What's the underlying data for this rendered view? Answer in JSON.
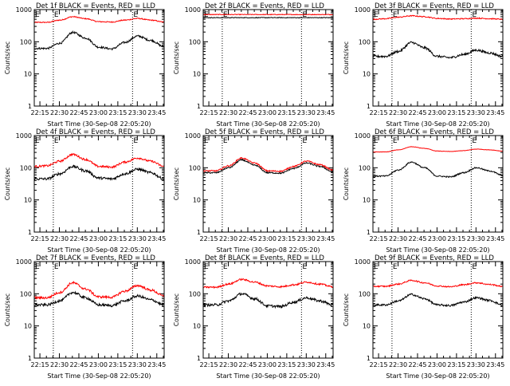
{
  "chart_data": [
    {
      "type": "line",
      "title": "Det 1f BLACK = Events, RED = LLD",
      "xlabel": "Start Time (30-Sep-08 22:05:20)",
      "ylabel": "Counts/sec",
      "xticks": [
        "22:15",
        "22:30",
        "22:45",
        "23:00",
        "23:15",
        "23:30",
        "23:45"
      ],
      "xlim_minutes": [
        5.33,
        105.33
      ],
      "yscale": "log",
      "ylim": [
        1,
        1000
      ],
      "yticks": [
        "1",
        "10",
        "100",
        "1000"
      ],
      "marker_lines_min": [
        20,
        81
      ],
      "marker_labels": [
        "E",
        "E"
      ],
      "series": [
        {
          "name": "Events",
          "color": "#000000",
          "baseline": 62,
          "amp": 3.1,
          "noise": 0.03,
          "points_x": [
            5.33,
            15,
            25,
            35,
            45,
            55,
            65,
            75,
            85,
            95,
            105.33
          ],
          "points_y": [
            62,
            62,
            90,
            195,
            130,
            68,
            60,
            95,
            150,
            110,
            70
          ]
        },
        {
          "name": "LLD",
          "color": "#ff0000",
          "baseline": 400,
          "amp": 1.5,
          "noise": 0.015,
          "points_x": [
            5.33,
            15,
            25,
            35,
            45,
            55,
            65,
            75,
            85,
            95,
            105.33
          ],
          "points_y": [
            400,
            400,
            470,
            600,
            520,
            420,
            410,
            470,
            530,
            470,
            410
          ]
        }
      ]
    },
    {
      "type": "line",
      "title": "Det 2f BLACK = Events, RED = LLD",
      "xlabel": "Start Time (30-Sep-08 22:05:20)",
      "ylabel": "Counts/sec",
      "xticks": [
        "22:15",
        "22:30",
        "22:45",
        "23:00",
        "23:15",
        "23:30",
        "23:45"
      ],
      "xlim_minutes": [
        5.33,
        105.33
      ],
      "yscale": "log",
      "ylim": [
        1,
        1000
      ],
      "yticks": [
        "1",
        "10",
        "100",
        "1000"
      ],
      "marker_lines_min": [
        20,
        81
      ],
      "marker_labels": [
        "E",
        "E"
      ],
      "series": [
        {
          "name": "Events",
          "color": "#000000",
          "noise": 0.01,
          "points_x": [
            5.33,
            25,
            45,
            65,
            85,
            105.33
          ],
          "points_y": [
            560,
            560,
            560,
            560,
            560,
            560
          ]
        },
        {
          "name": "LLD",
          "color": "#ff0000",
          "noise": 0.01,
          "points_x": [
            5.33,
            25,
            45,
            65,
            85,
            105.33
          ],
          "points_y": [
            700,
            700,
            700,
            700,
            700,
            700
          ]
        }
      ]
    },
    {
      "type": "line",
      "title": "Det 3f BLACK = Events, RED = LLD",
      "xlabel": "Start Time (30-Sep-08 22:05:20)",
      "ylabel": "Counts/sec",
      "xticks": [
        "22:15",
        "22:30",
        "22:45",
        "23:00",
        "23:15",
        "23:30",
        "23:45"
      ],
      "xlim_minutes": [
        5.33,
        105.33
      ],
      "yscale": "log",
      "ylim": [
        1,
        1000
      ],
      "yticks": [
        "1",
        "10",
        "100",
        "1000"
      ],
      "marker_lines_min": [
        20,
        81
      ],
      "marker_labels": [
        "E",
        "E"
      ],
      "series": [
        {
          "name": "Events",
          "color": "#000000",
          "noise": 0.035,
          "points_x": [
            5.33,
            15,
            25,
            35,
            45,
            55,
            65,
            75,
            85,
            95,
            105.33
          ],
          "points_y": [
            35,
            35,
            50,
            95,
            65,
            35,
            32,
            40,
            55,
            45,
            35
          ]
        },
        {
          "name": "LLD",
          "color": "#ff0000",
          "noise": 0.015,
          "points_x": [
            5.33,
            15,
            25,
            35,
            45,
            55,
            65,
            75,
            85,
            95,
            105.33
          ],
          "points_y": [
            500,
            520,
            580,
            640,
            600,
            530,
            510,
            520,
            540,
            520,
            500
          ]
        }
      ]
    },
    {
      "type": "line",
      "title": "Det 4f BLACK = Events, RED = LLD",
      "xlabel": "Start Time (30-Sep-08 22:05:20)",
      "ylabel": "Counts/sec",
      "xticks": [
        "22:15",
        "22:30",
        "22:45",
        "23:00",
        "23:15",
        "23:30",
        "23:45"
      ],
      "xlim_minutes": [
        5.33,
        105.33
      ],
      "yscale": "log",
      "ylim": [
        1,
        1000
      ],
      "yticks": [
        "1",
        "10",
        "100",
        "1000"
      ],
      "marker_lines_min": [
        20,
        81
      ],
      "marker_labels": [
        "E",
        "E"
      ],
      "series": [
        {
          "name": "Events",
          "color": "#000000",
          "noise": 0.04,
          "points_x": [
            5.33,
            15,
            25,
            35,
            45,
            55,
            65,
            75,
            85,
            95,
            105.33
          ],
          "points_y": [
            45,
            45,
            65,
            110,
            80,
            48,
            45,
            65,
            90,
            70,
            45
          ]
        },
        {
          "name": "LLD",
          "color": "#ff0000",
          "noise": 0.03,
          "points_x": [
            5.33,
            15,
            25,
            35,
            45,
            55,
            65,
            75,
            85,
            95,
            105.33
          ],
          "points_y": [
            110,
            115,
            160,
            260,
            180,
            110,
            105,
            150,
            200,
            160,
            110
          ]
        }
      ]
    },
    {
      "type": "line",
      "title": "Det 5f BLACK = Events, RED = LLD",
      "xlabel": "Start Time (30-Sep-08 22:05:20)",
      "ylabel": "Counts/sec",
      "xticks": [
        "22:15",
        "22:30",
        "22:45",
        "23:00",
        "23:15",
        "23:30",
        "23:45"
      ],
      "xlim_minutes": [
        5.33,
        105.33
      ],
      "yscale": "log",
      "ylim": [
        1,
        1000
      ],
      "yticks": [
        "1",
        "10",
        "100",
        "1000"
      ],
      "marker_lines_min": [
        20,
        81
      ],
      "marker_labels": [
        "E",
        "E"
      ],
      "series": [
        {
          "name": "Events",
          "color": "#000000",
          "noise": 0.02,
          "points_x": [
            5.33,
            15,
            25,
            35,
            45,
            55,
            65,
            75,
            85,
            95,
            105.33
          ],
          "points_y": [
            70,
            70,
            100,
            175,
            120,
            70,
            68,
            95,
            140,
            110,
            75
          ]
        },
        {
          "name": "LLD",
          "color": "#ff0000",
          "noise": 0.02,
          "points_x": [
            5.33,
            15,
            25,
            35,
            45,
            55,
            65,
            75,
            85,
            95,
            105.33
          ],
          "points_y": [
            80,
            80,
            115,
            200,
            140,
            80,
            78,
            110,
            160,
            125,
            85
          ]
        }
      ]
    },
    {
      "type": "line",
      "title": "Det 6f BLACK = Events, RED = LLD",
      "xlabel": "Start Time (30-Sep-08 22:05:20)",
      "ylabel": "Counts/sec",
      "xticks": [
        "22:15",
        "22:30",
        "22:45",
        "23:00",
        "23:15",
        "23:30",
        "23:45"
      ],
      "xlim_minutes": [
        5.33,
        105.33
      ],
      "yscale": "log",
      "ylim": [
        1,
        1000
      ],
      "yticks": [
        "1",
        "10",
        "100",
        "1000"
      ],
      "marker_lines_min": [
        20,
        81
      ],
      "marker_labels": [
        "E",
        "E"
      ],
      "series": [
        {
          "name": "Events",
          "color": "#000000",
          "noise": 0.02,
          "points_x": [
            5.33,
            15,
            25,
            35,
            45,
            55,
            65,
            75,
            85,
            95,
            105.33
          ],
          "points_y": [
            55,
            55,
            85,
            150,
            100,
            55,
            52,
            70,
            100,
            80,
            58
          ]
        },
        {
          "name": "LLD",
          "color": "#ff0000",
          "noise": 0.005,
          "points_x": [
            5.33,
            15,
            25,
            35,
            45,
            55,
            65,
            75,
            85,
            95,
            105.33
          ],
          "points_y": [
            310,
            310,
            360,
            450,
            400,
            330,
            320,
            340,
            380,
            360,
            330
          ]
        }
      ]
    },
    {
      "type": "line",
      "title": "Det 7f BLACK = Events, RED = LLD",
      "xlabel": "Start Time (30-Sep-08 22:05:20)",
      "ylabel": "Counts/sec",
      "xticks": [
        "22:15",
        "22:30",
        "22:45",
        "23:00",
        "23:15",
        "23:30",
        "23:45"
      ],
      "xlim_minutes": [
        5.33,
        105.33
      ],
      "yscale": "log",
      "ylim": [
        1,
        1000
      ],
      "yticks": [
        "1",
        "10",
        "100",
        "1000"
      ],
      "marker_lines_min": [
        20,
        81
      ],
      "marker_labels": [
        "E",
        "E"
      ],
      "series": [
        {
          "name": "Events",
          "color": "#000000",
          "noise": 0.04,
          "points_x": [
            5.33,
            15,
            25,
            35,
            45,
            55,
            65,
            75,
            85,
            95,
            105.33
          ],
          "points_y": [
            45,
            45,
            60,
            110,
            75,
            45,
            43,
            60,
            85,
            65,
            45
          ]
        },
        {
          "name": "LLD",
          "color": "#ff0000",
          "noise": 0.035,
          "points_x": [
            5.33,
            15,
            25,
            35,
            45,
            55,
            65,
            75,
            85,
            95,
            105.33
          ],
          "points_y": [
            75,
            75,
            110,
            220,
            140,
            80,
            78,
            120,
            180,
            130,
            85
          ]
        }
      ]
    },
    {
      "type": "line",
      "title": "Det 8f BLACK = Events, RED = LLD",
      "xlabel": "Start Time (30-Sep-08 22:05:20)",
      "ylabel": "Counts/sec",
      "xticks": [
        "22:15",
        "22:30",
        "22:45",
        "23:00",
        "23:15",
        "23:30",
        "23:45"
      ],
      "xlim_minutes": [
        5.33,
        105.33
      ],
      "yscale": "log",
      "ylim": [
        1,
        1000
      ],
      "yticks": [
        "1",
        "10",
        "100",
        "1000"
      ],
      "marker_lines_min": [
        20,
        81
      ],
      "marker_labels": [
        "E",
        "E"
      ],
      "series": [
        {
          "name": "Events",
          "color": "#000000",
          "noise": 0.04,
          "points_x": [
            5.33,
            15,
            25,
            35,
            45,
            55,
            65,
            75,
            85,
            95,
            105.33
          ],
          "points_y": [
            45,
            45,
            60,
            100,
            70,
            42,
            40,
            55,
            75,
            60,
            45
          ]
        },
        {
          "name": "LLD",
          "color": "#ff0000",
          "noise": 0.025,
          "points_x": [
            5.33,
            15,
            25,
            35,
            45,
            55,
            65,
            75,
            85,
            95,
            105.33
          ],
          "points_y": [
            160,
            160,
            200,
            280,
            230,
            175,
            165,
            190,
            230,
            200,
            165
          ]
        }
      ]
    },
    {
      "type": "line",
      "title": "Det 9f BLACK = Events, RED = LLD",
      "xlabel": "Start Time (30-Sep-08 22:05:20)",
      "ylabel": "Counts/sec",
      "xticks": [
        "22:15",
        "22:30",
        "22:45",
        "23:00",
        "23:15",
        "23:30",
        "23:45"
      ],
      "xlim_minutes": [
        5.33,
        105.33
      ],
      "yscale": "log",
      "ylim": [
        1,
        1000
      ],
      "yticks": [
        "1",
        "10",
        "100",
        "1000"
      ],
      "marker_lines_min": [
        20,
        81
      ],
      "marker_labels": [
        "E",
        "E"
      ],
      "series": [
        {
          "name": "Events",
          "color": "#000000",
          "noise": 0.03,
          "points_x": [
            5.33,
            15,
            25,
            35,
            45,
            55,
            65,
            75,
            85,
            95,
            105.33
          ],
          "points_y": [
            45,
            45,
            60,
            95,
            70,
            45,
            43,
            55,
            75,
            62,
            45
          ]
        },
        {
          "name": "LLD",
          "color": "#ff0000",
          "noise": 0.02,
          "points_x": [
            5.33,
            15,
            25,
            35,
            45,
            55,
            65,
            75,
            85,
            95,
            105.33
          ],
          "points_y": [
            170,
            170,
            200,
            260,
            220,
            175,
            165,
            190,
            220,
            195,
            170
          ]
        }
      ]
    }
  ]
}
